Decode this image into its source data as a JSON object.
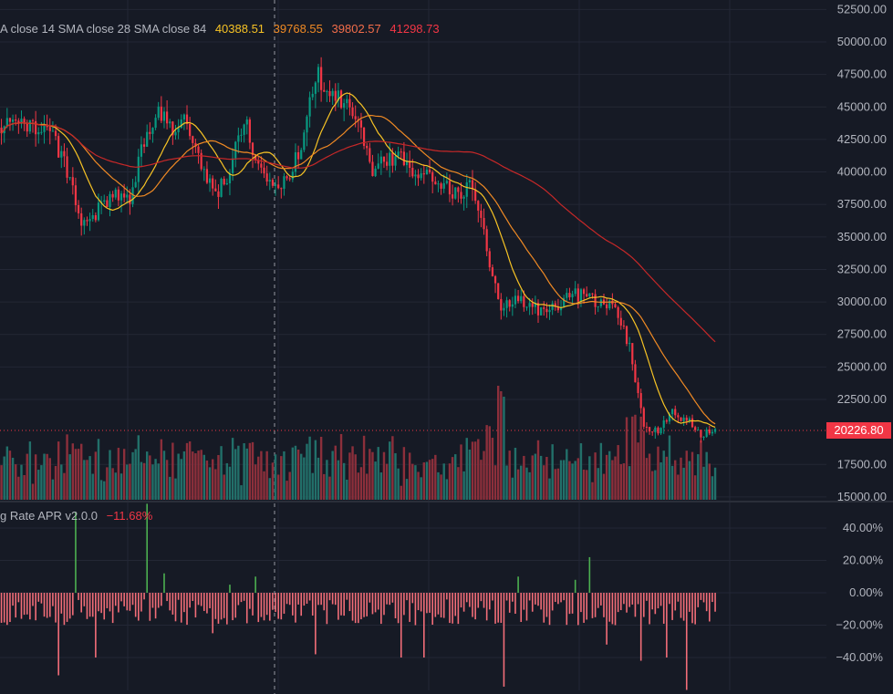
{
  "colors": {
    "background": "#161a25",
    "grid": "#232735",
    "axis_text": "#b2b5be",
    "up": "#089981",
    "down": "#f23645",
    "volume_up": "#22706a",
    "volume_down": "#8c2f3b",
    "sma_14": "#f7c325",
    "sma_28": "#f08a24",
    "sma_84": "#c62828",
    "funding_negative": "#f26d78",
    "funding_positive": "#4caf50",
    "crosshair": "#9598a1"
  },
  "legend": {
    "indicator_label": "A close 14 SMA close 28 SMA close 84",
    "values": [
      "40388.51",
      "39768.55",
      "39802.57",
      "41298.73"
    ]
  },
  "funding_legend": {
    "label": "g Rate APR v2.0.0",
    "value": "−11.68%"
  },
  "current_price_label": "20226.80",
  "chart_data": [
    {
      "type": "candlestick",
      "price_ticks": [
        "52500.00",
        "50000.00",
        "47500.00",
        "45000.00",
        "42500.00",
        "40000.00",
        "37500.00",
        "35000.00",
        "32500.00",
        "30000.00",
        "27500.00",
        "25000.00",
        "22500.00",
        "17500.00",
        "15000.00"
      ],
      "ylim": [
        15000,
        52500
      ],
      "current_price": 20226.8,
      "anchors": [
        [
          0,
          43500
        ],
        [
          8,
          43800
        ],
        [
          16,
          43200
        ],
        [
          22,
          41000
        ],
        [
          28,
          36500
        ],
        [
          34,
          37000
        ],
        [
          40,
          38500
        ],
        [
          45,
          38000
        ],
        [
          50,
          42500
        ],
        [
          55,
          44600
        ],
        [
          60,
          42800
        ],
        [
          65,
          44200
        ],
        [
          70,
          40500
        ],
        [
          75,
          38000
        ],
        [
          80,
          40000
        ],
        [
          85,
          44200
        ],
        [
          90,
          40500
        ],
        [
          95,
          38500
        ],
        [
          100,
          39500
        ],
        [
          105,
          42000
        ],
        [
          110,
          47500
        ],
        [
          115,
          46500
        ],
        [
          120,
          45500
        ],
        [
          125,
          43500
        ],
        [
          130,
          40000
        ],
        [
          135,
          41000
        ],
        [
          140,
          41500
        ],
        [
          145,
          39500
        ],
        [
          150,
          40000
        ],
        [
          155,
          39000
        ],
        [
          160,
          38000
        ],
        [
          165,
          39000
        ],
        [
          170,
          34000
        ],
        [
          175,
          29500
        ],
        [
          180,
          30500
        ],
        [
          185,
          29800
        ],
        [
          190,
          29200
        ],
        [
          195,
          29500
        ],
        [
          200,
          30800
        ],
        [
          205,
          30200
        ],
        [
          210,
          30000
        ],
        [
          215,
          29500
        ],
        [
          220,
          26500
        ],
        [
          225,
          20500
        ],
        [
          230,
          20000
        ],
        [
          235,
          21500
        ],
        [
          240,
          21000
        ],
        [
          245,
          19800
        ],
        [
          250,
          20226.8
        ]
      ],
      "sma_14": {
        "name": "SMA close 14",
        "last_value": 40388.51
      },
      "sma_28": {
        "name": "SMA close 28",
        "last_value": 39768.55
      },
      "sma_84": {
        "name": "SMA close 84",
        "last_value": 39802.57
      }
    },
    {
      "type": "bar",
      "name": "Funding Rate APR",
      "unit": "%",
      "y_ticks": [
        "40.00%",
        "20.00%",
        "0.00%",
        "−20.00%",
        "−40.00%"
      ],
      "ylim": [
        -57,
        57
      ],
      "last_value": -11.68,
      "spikes": [
        [
          20,
          -51
        ],
        [
          26,
          50
        ],
        [
          33,
          -40
        ],
        [
          51,
          55
        ],
        [
          57,
          12
        ],
        [
          74,
          -25
        ],
        [
          80,
          5
        ],
        [
          89,
          10
        ],
        [
          110,
          -38
        ],
        [
          140,
          -40
        ],
        [
          143,
          -18
        ],
        [
          145,
          -20
        ],
        [
          148,
          -40
        ],
        [
          176,
          -58
        ],
        [
          181,
          10
        ],
        [
          201,
          8
        ],
        [
          206,
          22
        ],
        [
          212,
          -32
        ],
        [
          215,
          -20
        ],
        [
          224,
          -42
        ],
        [
          233,
          -40
        ],
        [
          240,
          -60
        ]
      ]
    }
  ]
}
